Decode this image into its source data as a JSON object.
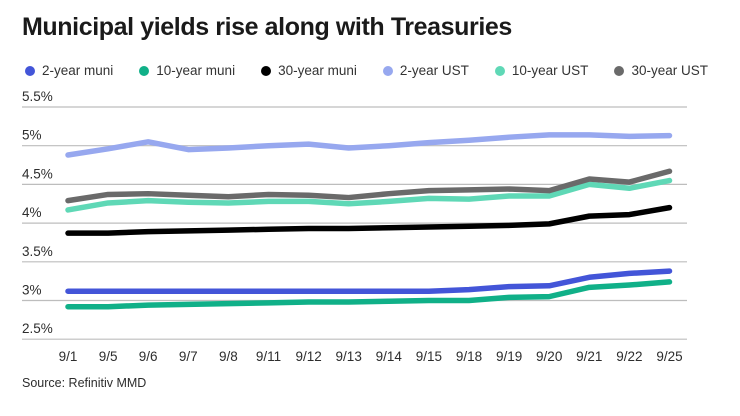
{
  "header": {
    "title": "Municipal yields rise along with Treasuries"
  },
  "footer": {
    "source": "Source: Refinitiv MMD"
  },
  "chart_data": {
    "type": "line",
    "title": "Municipal yields rise along with Treasuries",
    "xlabel": "",
    "ylabel": "",
    "unit": "%",
    "x": [
      "9/1",
      "9/5",
      "9/6",
      "9/7",
      "9/8",
      "9/11",
      "9/12",
      "9/13",
      "9/14",
      "9/15",
      "9/18",
      "9/19",
      "9/20",
      "9/21",
      "9/22",
      "9/25"
    ],
    "ylim": [
      2.5,
      5.5
    ],
    "y_ticks": [
      5.5,
      5.0,
      4.5,
      4.0,
      3.5,
      3.0,
      2.5
    ],
    "y_tick_labels": [
      "5.5%",
      "5%",
      "4.5%",
      "4%",
      "3.5%",
      "3%",
      "2.5%"
    ],
    "grid": "horizontal",
    "legend_position": "top",
    "series": [
      {
        "name": "2-year muni",
        "color": "#4355d8",
        "values": [
          3.12,
          3.12,
          3.12,
          3.12,
          3.12,
          3.12,
          3.12,
          3.12,
          3.12,
          3.12,
          3.14,
          3.18,
          3.19,
          3.3,
          3.35,
          3.38
        ]
      },
      {
        "name": "10-year muni",
        "color": "#10b088",
        "values": [
          2.92,
          2.92,
          2.94,
          2.95,
          2.96,
          2.97,
          2.98,
          2.98,
          2.99,
          3.0,
          3.0,
          3.04,
          3.05,
          3.17,
          3.2,
          3.24
        ]
      },
      {
        "name": "30-year muni",
        "color": "#000000",
        "values": [
          3.87,
          3.87,
          3.89,
          3.9,
          3.91,
          3.92,
          3.93,
          3.93,
          3.94,
          3.95,
          3.96,
          3.97,
          3.99,
          4.09,
          4.11,
          4.2
        ]
      },
      {
        "name": "2-year UST",
        "color": "#97a8ef",
        "values": [
          4.88,
          4.96,
          5.05,
          4.95,
          4.97,
          5.0,
          5.02,
          4.97,
          5.0,
          5.04,
          5.07,
          5.11,
          5.14,
          5.14,
          5.12,
          5.13
        ]
      },
      {
        "name": "10-year UST",
        "color": "#5fd8b6",
        "values": [
          4.17,
          4.26,
          4.29,
          4.27,
          4.26,
          4.28,
          4.28,
          4.25,
          4.28,
          4.32,
          4.31,
          4.35,
          4.35,
          4.5,
          4.45,
          4.55
        ]
      },
      {
        "name": "30-year UST",
        "color": "#6a6a6a",
        "values": [
          4.29,
          4.37,
          4.38,
          4.36,
          4.34,
          4.37,
          4.36,
          4.33,
          4.38,
          4.42,
          4.43,
          4.44,
          4.42,
          4.57,
          4.53,
          4.67
        ]
      }
    ],
    "style": {
      "grid_color": "#bdbdbd",
      "axis_text_color": "#2d2d2d",
      "line_width": 5.5
    }
  }
}
